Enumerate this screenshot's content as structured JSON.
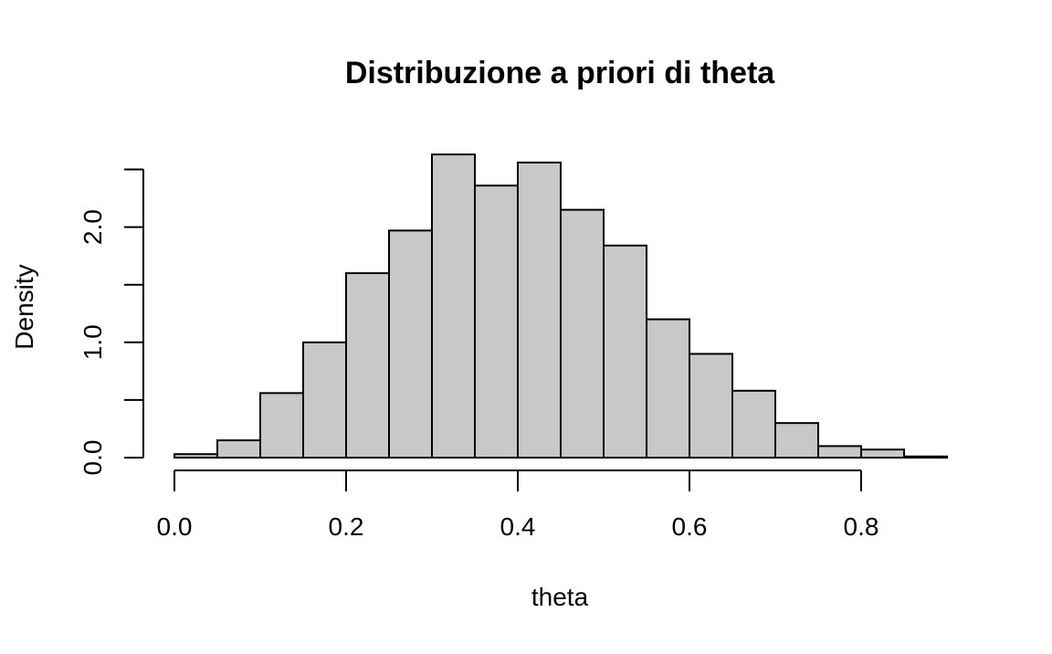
{
  "chart_data": {
    "type": "bar",
    "title": "Distribuzione a priori di theta",
    "xlabel": "theta",
    "ylabel": "Density",
    "xlim": [
      0.0,
      0.9
    ],
    "ylim": [
      0.0,
      2.5
    ],
    "x_ticks": [
      0.0,
      0.2,
      0.4,
      0.6,
      0.8
    ],
    "x_tick_labels": [
      "0.0",
      "0.2",
      "0.4",
      "0.6",
      "0.8"
    ],
    "y_ticks": [
      0.0,
      0.5,
      1.0,
      1.5,
      2.0,
      2.5
    ],
    "y_tick_labels": [
      "0.0",
      "",
      "1.0",
      "",
      "2.0",
      ""
    ],
    "bar_fill": "#c8c8c8",
    "bar_stroke": "#000000",
    "grid": false,
    "bins": [
      {
        "x0": 0.0,
        "x1": 0.05,
        "density": 0.03
      },
      {
        "x0": 0.05,
        "x1": 0.1,
        "density": 0.15
      },
      {
        "x0": 0.1,
        "x1": 0.15,
        "density": 0.56
      },
      {
        "x0": 0.15,
        "x1": 0.2,
        "density": 1.0
      },
      {
        "x0": 0.2,
        "x1": 0.25,
        "density": 1.6
      },
      {
        "x0": 0.25,
        "x1": 0.3,
        "density": 1.97
      },
      {
        "x0": 0.3,
        "x1": 0.35,
        "density": 2.63
      },
      {
        "x0": 0.35,
        "x1": 0.4,
        "density": 2.36
      },
      {
        "x0": 0.4,
        "x1": 0.45,
        "density": 2.56
      },
      {
        "x0": 0.45,
        "x1": 0.5,
        "density": 2.15
      },
      {
        "x0": 0.5,
        "x1": 0.55,
        "density": 1.84
      },
      {
        "x0": 0.55,
        "x1": 0.6,
        "density": 1.2
      },
      {
        "x0": 0.6,
        "x1": 0.65,
        "density": 0.9
      },
      {
        "x0": 0.65,
        "x1": 0.7,
        "density": 0.58
      },
      {
        "x0": 0.7,
        "x1": 0.75,
        "density": 0.3
      },
      {
        "x0": 0.75,
        "x1": 0.8,
        "density": 0.1
      },
      {
        "x0": 0.8,
        "x1": 0.85,
        "density": 0.07
      },
      {
        "x0": 0.85,
        "x1": 0.9,
        "density": 0.01
      }
    ]
  }
}
